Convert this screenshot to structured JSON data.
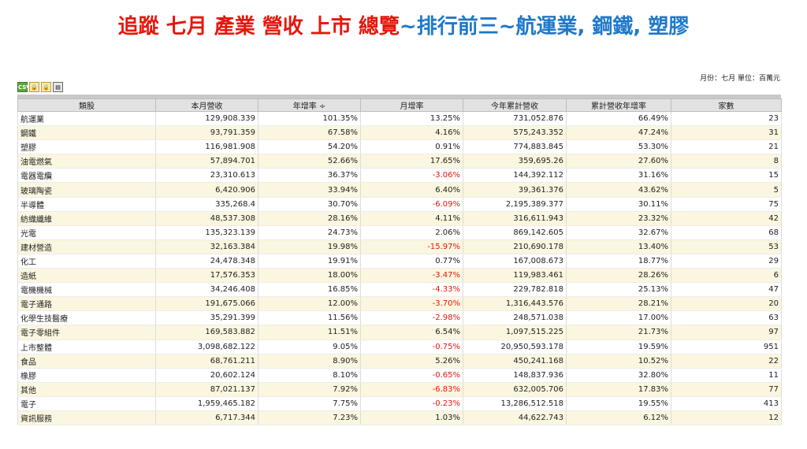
{
  "title": {
    "part1": "追蹤 七月 產業 營收 上市 總覽",
    "part2": "~排行前三~航運業, 鋼鐵, 塑膠"
  },
  "unit_note": "月份：七月 單位：百萬元",
  "toolbar": {
    "csv_label": "CSV",
    "icons": [
      "csv-icon",
      "lock-icon",
      "lock-icon",
      "print-icon"
    ]
  },
  "table": {
    "headers": [
      "類股",
      "本月營收",
      "年增率 ÷",
      "月增率",
      "今年累計營收",
      "累計營收年增率",
      "家數"
    ],
    "rows": [
      [
        "航運業",
        "129,908.339",
        "101.35%",
        "13.25%",
        "731,052.876",
        "66.49%",
        "23"
      ],
      [
        "鋼鐵",
        "93,791.359",
        "67.58%",
        "4.16%",
        "575,243.352",
        "47.24%",
        "31"
      ],
      [
        "塑膠",
        "116,981.908",
        "54.20%",
        "0.91%",
        "774,883.845",
        "53.30%",
        "21"
      ],
      [
        "油電燃氣",
        "57,894.701",
        "52.66%",
        "17.65%",
        "359,695.26",
        "27.60%",
        "8"
      ],
      [
        "電器電纜",
        "23,310.613",
        "36.37%",
        "-3.06%",
        "144,392.112",
        "31.16%",
        "15"
      ],
      [
        "玻璃陶瓷",
        "6,420.906",
        "33.94%",
        "6.40%",
        "39,361.376",
        "43.62%",
        "5"
      ],
      [
        "半導體",
        "335,268.4",
        "30.70%",
        "-6.09%",
        "2,195,389.377",
        "30.11%",
        "75"
      ],
      [
        "紡織纖維",
        "48,537.308",
        "28.16%",
        "4.11%",
        "316,611.943",
        "23.32%",
        "42"
      ],
      [
        "光電",
        "135,323.139",
        "24.73%",
        "2.06%",
        "869,142.605",
        "32.67%",
        "68"
      ],
      [
        "建材營造",
        "32,163.384",
        "19.98%",
        "-15.97%",
        "210,690.178",
        "13.40%",
        "53"
      ],
      [
        "化工",
        "24,478.348",
        "19.91%",
        "0.77%",
        "167,008.673",
        "18.77%",
        "29"
      ],
      [
        "造紙",
        "17,576.353",
        "18.00%",
        "-3.47%",
        "119,983.461",
        "28.26%",
        "6"
      ],
      [
        "電機機械",
        "34,246.408",
        "16.85%",
        "-4.33%",
        "229,782.818",
        "25.13%",
        "47"
      ],
      [
        "電子通路",
        "191,675.066",
        "12.00%",
        "-3.70%",
        "1,316,443.576",
        "28.21%",
        "20"
      ],
      [
        "化學生技醫療",
        "35,291.399",
        "11.56%",
        "-2.98%",
        "248,571.038",
        "17.00%",
        "63"
      ],
      [
        "電子零組件",
        "169,583.882",
        "11.51%",
        "6.54%",
        "1,097,515.225",
        "21.73%",
        "97"
      ],
      [
        "上市整體",
        "3,098,682.122",
        "9.05%",
        "-0.75%",
        "20,950,593.178",
        "19.59%",
        "951"
      ],
      [
        "食品",
        "68,761.211",
        "8.90%",
        "5.26%",
        "450,241.168",
        "10.52%",
        "22"
      ],
      [
        "橡膠",
        "20,602.124",
        "8.10%",
        "-0.65%",
        "148,837.936",
        "32.80%",
        "11"
      ],
      [
        "其他",
        "87,021.137",
        "7.92%",
        "-6.83%",
        "632,005.706",
        "17.83%",
        "77"
      ],
      [
        "電子",
        "1,959,465.182",
        "7.75%",
        "-0.23%",
        "13,286,512.518",
        "19.55%",
        "413"
      ],
      [
        "資訊服務",
        "6,717.344",
        "7.23%",
        "1.03%",
        "44,622.743",
        "6.12%",
        "12"
      ]
    ]
  },
  "colors": {
    "title_red": "#e8160c",
    "title_blue": "#1f78c8",
    "negative": "#e8160c",
    "stripe": "#fbf6df",
    "header_bg": "#e2e2e2"
  }
}
